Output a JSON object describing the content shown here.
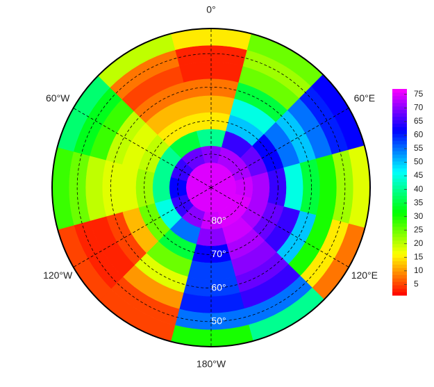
{
  "chart_data": {
    "type": "polar-heatmap",
    "lats": [
      85,
      80,
      75,
      70,
      65,
      60,
      55,
      50,
      45
    ],
    "lons": [
      0,
      30,
      60,
      90,
      120,
      150,
      180,
      -150,
      -120,
      -90,
      -60,
      -30
    ],
    "values": [
      [
        75,
        75,
        75,
        75,
        75,
        75,
        75,
        75,
        75,
        75,
        75,
        75
      ],
      [
        70,
        72,
        72,
        74,
        75,
        75,
        74,
        70,
        65,
        62,
        65,
        68
      ],
      [
        40,
        65,
        68,
        72,
        72,
        74,
        70,
        55,
        45,
        40,
        40,
        35
      ],
      [
        15,
        50,
        62,
        65,
        68,
        72,
        62,
        35,
        25,
        22,
        20,
        15
      ],
      [
        12,
        45,
        55,
        45,
        65,
        70,
        58,
        25,
        12,
        18,
        18,
        12
      ],
      [
        8,
        35,
        50,
        35,
        50,
        68,
        58,
        18,
        5,
        18,
        20,
        8
      ],
      [
        3,
        25,
        55,
        30,
        30,
        65,
        60,
        10,
        3,
        20,
        28,
        5
      ],
      [
        3,
        22,
        60,
        22,
        15,
        55,
        55,
        5,
        3,
        25,
        33,
        8
      ],
      [
        15,
        25,
        62,
        18,
        8,
        40,
        30,
        5,
        5,
        28,
        38,
        20
      ]
    ],
    "rlim": [
      90,
      42.5
    ],
    "lon_labels": [
      {
        "value": 0,
        "label": "0°"
      },
      {
        "value": 60,
        "label": "60°E"
      },
      {
        "value": 120,
        "label": "120°E"
      },
      {
        "value": 180,
        "label": "180°W"
      },
      {
        "value": -120,
        "label": "120°W"
      },
      {
        "value": -60,
        "label": "60°W"
      }
    ],
    "lat_labels": [
      {
        "value": 80,
        "label": "80°"
      },
      {
        "value": 70,
        "label": "70°"
      },
      {
        "value": 60,
        "label": "60°"
      },
      {
        "value": 50,
        "label": "50°"
      }
    ],
    "grid": true,
    "colormap": "rainbow",
    "colorbar": {
      "lim": [
        1,
        77
      ],
      "ticks": [
        5,
        10,
        15,
        20,
        25,
        30,
        35,
        40,
        45,
        50,
        55,
        60,
        65,
        70,
        75
      ]
    }
  }
}
